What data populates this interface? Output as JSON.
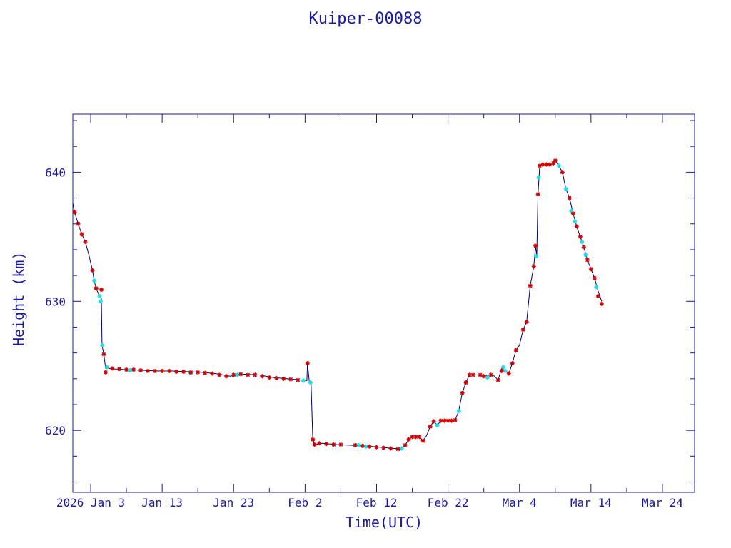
{
  "chart_data": {
    "type": "line",
    "title": "Kuiper-00088",
    "xlabel": "Time(UTC)",
    "ylabel": "Height (km)",
    "x_axis": {
      "type": "date",
      "range": [
        "2025-12-31T12:00",
        "2026-03-28T12:00"
      ],
      "tick_labels": [
        {
          "date": "2026-01-03",
          "label": "2026 Jan  3"
        },
        {
          "date": "2026-01-13",
          "label": "Jan 13"
        },
        {
          "date": "2026-01-23",
          "label": "Jan 23"
        },
        {
          "date": "2026-02-02",
          "label": "Feb  2"
        },
        {
          "date": "2026-02-12",
          "label": "Feb 12"
        },
        {
          "date": "2026-02-22",
          "label": "Feb 22"
        },
        {
          "date": "2026-03-04",
          "label": "Mar  4"
        },
        {
          "date": "2026-03-14",
          "label": "Mar 14"
        },
        {
          "date": "2026-03-24",
          "label": "Mar 24"
        }
      ]
    },
    "y_axis": {
      "range": [
        615.2,
        644.5
      ],
      "ticks": [
        620,
        630,
        640
      ],
      "minor_step": 2
    },
    "grid": false,
    "legend": "none",
    "colors": {
      "axes": "#1a1aa0",
      "line": "#00006e",
      "marker_red": "#d40000",
      "marker_cyan": "#22dde6"
    },
    "series": [
      {
        "values": [
          [
            "2025-12-31T12:00",
            637.6
          ],
          [
            "2025-12-31T18:00",
            636.9
          ],
          [
            "2026-01-01T06:00",
            636.0
          ],
          [
            "2026-01-01T18:00",
            635.2
          ],
          [
            "2026-01-02T06:00",
            634.6
          ],
          [
            "2026-01-02T18:00",
            633.6
          ],
          [
            "2026-01-03T06:00",
            632.4
          ],
          [
            "2026-01-03T12:00",
            631.6
          ],
          [
            "2026-01-03T18:00",
            631.0
          ],
          [
            "2026-01-04T06:00",
            630.4
          ],
          [
            "2026-01-04T12:00",
            630.2
          ],
          [
            "2026-01-04T14:00",
            626.6
          ],
          [
            "2026-01-04T20:00",
            625.9
          ],
          [
            "2026-01-05T02:00",
            624.8
          ],
          [
            "2026-01-05T12:00",
            624.8
          ],
          [
            "2026-01-06T12:00",
            624.75
          ],
          [
            "2026-01-08T12:00",
            624.7
          ],
          [
            "2026-01-10T12:00",
            624.65
          ],
          [
            "2026-01-12T12:00",
            624.6
          ],
          [
            "2026-01-14T12:00",
            624.6
          ],
          [
            "2026-01-16T12:00",
            624.55
          ],
          [
            "2026-01-18T12:00",
            624.5
          ],
          [
            "2026-01-20T12:00",
            624.4
          ],
          [
            "2026-01-21T12:00",
            624.3
          ],
          [
            "2026-01-22T12:00",
            624.2
          ],
          [
            "2026-01-23T12:00",
            624.3
          ],
          [
            "2026-01-24T12:00",
            624.35
          ],
          [
            "2026-01-26T12:00",
            624.3
          ],
          [
            "2026-01-28T12:00",
            624.1
          ],
          [
            "2026-01-30T12:00",
            624.0
          ],
          [
            "2026-02-01T12:00",
            623.9
          ],
          [
            "2026-02-02T06:00",
            623.85
          ],
          [
            "2026-02-02T08:00",
            625.2
          ],
          [
            "2026-02-02T14:00",
            623.8
          ],
          [
            "2026-02-02T20:00",
            623.7
          ],
          [
            "2026-02-03T02:00",
            619.3
          ],
          [
            "2026-02-03T08:00",
            618.9
          ],
          [
            "2026-02-04T12:00",
            619.0
          ],
          [
            "2026-02-06T12:00",
            618.9
          ],
          [
            "2026-02-08T12:00",
            618.85
          ],
          [
            "2026-02-10T12:00",
            618.8
          ],
          [
            "2026-02-12T12:00",
            618.7
          ],
          [
            "2026-02-14T12:00",
            618.6
          ],
          [
            "2026-02-15T12:00",
            618.6
          ],
          [
            "2026-02-16T00:00",
            618.85
          ],
          [
            "2026-02-16T12:00",
            619.3
          ],
          [
            "2026-02-17T00:00",
            619.5
          ],
          [
            "2026-02-18T00:00",
            619.5
          ],
          [
            "2026-02-18T12:00",
            619.2
          ],
          [
            "2026-02-19T00:00",
            619.6
          ],
          [
            "2026-02-19T12:00",
            620.3
          ],
          [
            "2026-02-20T00:00",
            620.7
          ],
          [
            "2026-02-20T12:00",
            620.4
          ],
          [
            "2026-02-21T00:00",
            620.75
          ],
          [
            "2026-02-22T12:00",
            620.75
          ],
          [
            "2026-02-23T00:00",
            620.8
          ],
          [
            "2026-02-23T12:00",
            621.5
          ],
          [
            "2026-02-24T00:00",
            622.9
          ],
          [
            "2026-02-24T12:00",
            623.7
          ],
          [
            "2026-02-25T00:00",
            624.3
          ],
          [
            "2026-02-26T00:00",
            624.3
          ],
          [
            "2026-02-27T00:00",
            624.2
          ],
          [
            "2026-02-28T00:00",
            624.3
          ],
          [
            "2026-02-28T12:00",
            624.2
          ],
          [
            "2026-03-01T00:00",
            623.9
          ],
          [
            "2026-03-01T12:00",
            624.8
          ],
          [
            "2026-03-02T00:00",
            624.6
          ],
          [
            "2026-03-02T12:00",
            624.4
          ],
          [
            "2026-03-03T00:00",
            625.2
          ],
          [
            "2026-03-03T12:00",
            626.2
          ],
          [
            "2026-03-04T00:00",
            626.6
          ],
          [
            "2026-03-04T12:00",
            627.8
          ],
          [
            "2026-03-05T00:00",
            628.4
          ],
          [
            "2026-03-05T12:00",
            631.2
          ],
          [
            "2026-03-06T00:00",
            632.7
          ],
          [
            "2026-03-06T06:00",
            634.3
          ],
          [
            "2026-03-06T10:00",
            633.5
          ],
          [
            "2026-03-06T14:00",
            638.3
          ],
          [
            "2026-03-06T20:00",
            640.5
          ],
          [
            "2026-03-07T12:00",
            640.6
          ],
          [
            "2026-03-08T00:00",
            640.6
          ],
          [
            "2026-03-08T12:00",
            640.7
          ],
          [
            "2026-03-09T00:00",
            640.9
          ],
          [
            "2026-03-09T12:00",
            640.5
          ],
          [
            "2026-03-10T00:00",
            640.0
          ],
          [
            "2026-03-10T12:00",
            638.7
          ],
          [
            "2026-03-11T00:00",
            638.0
          ],
          [
            "2026-03-11T12:00",
            636.8
          ],
          [
            "2026-03-12T00:00",
            635.8
          ],
          [
            "2026-03-12T12:00",
            635.0
          ],
          [
            "2026-03-13T00:00",
            634.2
          ],
          [
            "2026-03-13T12:00",
            633.2
          ],
          [
            "2026-03-14T00:00",
            632.5
          ],
          [
            "2026-03-14T12:00",
            631.8
          ],
          [
            "2026-03-15T00:00",
            630.8
          ],
          [
            "2026-03-15T12:00",
            630.0
          ]
        ]
      }
    ],
    "markers": {
      "red_star": [
        [
          "2025-12-31T18:00",
          636.9
        ],
        [
          "2026-01-01T06:00",
          636.0
        ],
        [
          "2026-01-01T18:00",
          635.2
        ],
        [
          "2026-01-02T06:00",
          634.6
        ],
        [
          "2026-01-03T06:00",
          632.4
        ],
        [
          "2026-01-03T18:00",
          631.0
        ],
        [
          "2026-01-04T12:00",
          630.9
        ],
        [
          "2026-01-04T20:00",
          625.9
        ],
        [
          "2026-01-05T02:00",
          624.5
        ],
        [
          "2026-01-06T00:00",
          624.8
        ],
        [
          "2026-01-07T00:00",
          624.75
        ],
        [
          "2026-01-08T00:00",
          624.7
        ],
        [
          "2026-01-09T00:00",
          624.7
        ],
        [
          "2026-01-10T00:00",
          624.65
        ],
        [
          "2026-01-11T00:00",
          624.6
        ],
        [
          "2026-01-12T00:00",
          624.6
        ],
        [
          "2026-01-13T00:00",
          624.6
        ],
        [
          "2026-01-14T00:00",
          624.6
        ],
        [
          "2026-01-15T00:00",
          624.55
        ],
        [
          "2026-01-16T00:00",
          624.55
        ],
        [
          "2026-01-17T00:00",
          624.5
        ],
        [
          "2026-01-18T00:00",
          624.5
        ],
        [
          "2026-01-19T00:00",
          624.45
        ],
        [
          "2026-01-20T00:00",
          624.4
        ],
        [
          "2026-01-21T00:00",
          624.3
        ],
        [
          "2026-01-22T00:00",
          624.2
        ],
        [
          "2026-01-23T00:00",
          624.3
        ],
        [
          "2026-01-24T00:00",
          624.35
        ],
        [
          "2026-01-25T00:00",
          624.3
        ],
        [
          "2026-01-26T00:00",
          624.3
        ],
        [
          "2026-01-27T00:00",
          624.2
        ],
        [
          "2026-01-28T00:00",
          624.1
        ],
        [
          "2026-01-29T00:00",
          624.05
        ],
        [
          "2026-01-30T00:00",
          624.0
        ],
        [
          "2026-01-31T00:00",
          623.95
        ],
        [
          "2026-02-01T00:00",
          623.9
        ],
        [
          "2026-02-02T08:00",
          625.2
        ],
        [
          "2026-02-03T02:00",
          619.3
        ],
        [
          "2026-02-03T08:00",
          618.9
        ],
        [
          "2026-02-04T00:00",
          619.0
        ],
        [
          "2026-02-05T00:00",
          618.95
        ],
        [
          "2026-02-06T00:00",
          618.9
        ],
        [
          "2026-02-07T00:00",
          618.9
        ],
        [
          "2026-02-09T00:00",
          618.85
        ],
        [
          "2026-02-10T00:00",
          618.8
        ],
        [
          "2026-02-11T00:00",
          618.75
        ],
        [
          "2026-02-12T00:00",
          618.7
        ],
        [
          "2026-02-13T00:00",
          618.65
        ],
        [
          "2026-02-14T00:00",
          618.6
        ],
        [
          "2026-02-15T00:00",
          618.55
        ],
        [
          "2026-02-16T00:00",
          618.85
        ],
        [
          "2026-02-16T12:00",
          619.3
        ],
        [
          "2026-02-17T00:00",
          619.5
        ],
        [
          "2026-02-17T12:00",
          619.5
        ],
        [
          "2026-02-18T00:00",
          619.5
        ],
        [
          "2026-02-18T12:00",
          619.2
        ],
        [
          "2026-02-19T12:00",
          620.3
        ],
        [
          "2026-02-20T00:00",
          620.7
        ],
        [
          "2026-02-21T00:00",
          620.75
        ],
        [
          "2026-02-21T12:00",
          620.75
        ],
        [
          "2026-02-22T00:00",
          620.75
        ],
        [
          "2026-02-22T12:00",
          620.75
        ],
        [
          "2026-02-23T00:00",
          620.8
        ],
        [
          "2026-02-24T00:00",
          622.9
        ],
        [
          "2026-02-24T12:00",
          623.7
        ],
        [
          "2026-02-25T00:00",
          624.3
        ],
        [
          "2026-02-25T12:00",
          624.3
        ],
        [
          "2026-02-26T12:00",
          624.3
        ],
        [
          "2026-02-27T00:00",
          624.2
        ],
        [
          "2026-02-28T00:00",
          624.3
        ],
        [
          "2026-03-01T00:00",
          623.9
        ],
        [
          "2026-03-01T12:00",
          624.6
        ],
        [
          "2026-03-02T12:00",
          624.4
        ],
        [
          "2026-03-03T00:00",
          625.2
        ],
        [
          "2026-03-03T12:00",
          626.2
        ],
        [
          "2026-03-04T12:00",
          627.8
        ],
        [
          "2026-03-05T00:00",
          628.4
        ],
        [
          "2026-03-05T12:00",
          631.2
        ],
        [
          "2026-03-06T00:00",
          632.7
        ],
        [
          "2026-03-06T06:00",
          634.3
        ],
        [
          "2026-03-06T14:00",
          638.3
        ],
        [
          "2026-03-06T20:00",
          640.5
        ],
        [
          "2026-03-07T06:00",
          640.6
        ],
        [
          "2026-03-07T18:00",
          640.6
        ],
        [
          "2026-03-08T06:00",
          640.6
        ],
        [
          "2026-03-08T18:00",
          640.7
        ],
        [
          "2026-03-09T00:00",
          640.9
        ],
        [
          "2026-03-10T00:00",
          640.0
        ],
        [
          "2026-03-11T00:00",
          638.0
        ],
        [
          "2026-03-11T12:00",
          636.8
        ],
        [
          "2026-03-12T00:00",
          635.8
        ],
        [
          "2026-03-12T12:00",
          635.0
        ],
        [
          "2026-03-13T00:00",
          634.2
        ],
        [
          "2026-03-13T12:00",
          633.2
        ],
        [
          "2026-03-14T00:00",
          632.5
        ],
        [
          "2026-03-14T12:00",
          631.8
        ],
        [
          "2026-03-15T00:00",
          630.4
        ],
        [
          "2026-03-15T12:00",
          629.8
        ]
      ],
      "cyan_cross": [
        [
          "2026-01-03T12:00",
          631.6
        ],
        [
          "2026-01-03T20:00",
          631.0
        ],
        [
          "2026-01-04T06:00",
          630.4
        ],
        [
          "2026-01-04T09:00",
          630.0
        ],
        [
          "2026-01-04T15:00",
          626.6
        ],
        [
          "2026-01-05T06:00",
          624.9
        ],
        [
          "2026-01-08T12:00",
          624.65
        ],
        [
          "2026-01-17T00:00",
          624.45
        ],
        [
          "2026-01-23T12:00",
          624.3
        ],
        [
          "2026-02-01T18:00",
          623.85
        ],
        [
          "2026-02-02T18:00",
          623.7
        ],
        [
          "2026-02-09T12:00",
          618.85
        ],
        [
          "2026-02-10T12:00",
          618.75
        ],
        [
          "2026-02-15T12:00",
          618.6
        ],
        [
          "2026-02-20T12:00",
          620.4
        ],
        [
          "2026-02-23T12:00",
          621.5
        ],
        [
          "2026-02-27T12:00",
          624.1
        ],
        [
          "2026-03-01T18:00",
          624.9
        ],
        [
          "2026-03-02T00:00",
          624.6
        ],
        [
          "2026-03-06T08:00",
          633.5
        ],
        [
          "2026-03-06T16:00",
          639.6
        ],
        [
          "2026-03-09T12:00",
          640.5
        ],
        [
          "2026-03-10T12:00",
          638.7
        ],
        [
          "2026-03-11T06:00",
          637.0
        ],
        [
          "2026-03-11T18:00",
          636.2
        ],
        [
          "2026-03-12T18:00",
          634.6
        ],
        [
          "2026-03-13T06:00",
          633.6
        ],
        [
          "2026-03-14T18:00",
          631.1
        ]
      ]
    }
  }
}
